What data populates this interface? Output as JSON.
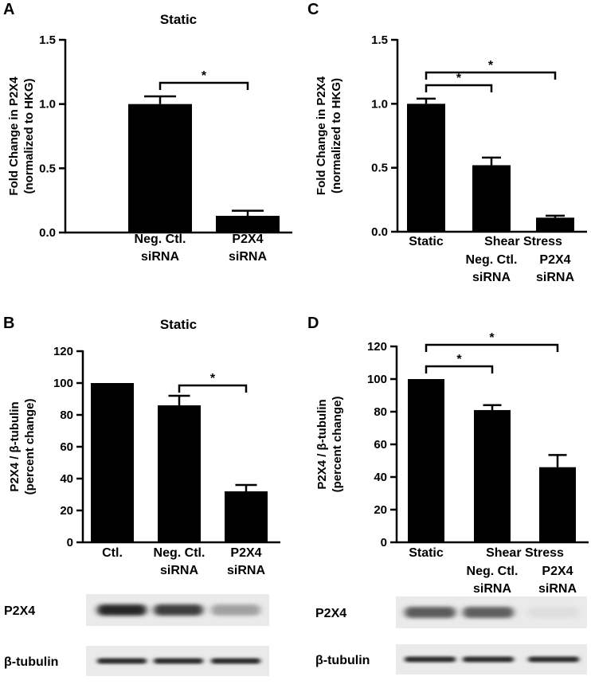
{
  "panels": [
    {
      "id": "A",
      "letter": "A"
    },
    {
      "id": "B",
      "letter": "B"
    },
    {
      "id": "C",
      "letter": "C"
    },
    {
      "id": "D",
      "letter": "D"
    }
  ],
  "chart_data": [
    {
      "panel": "A",
      "type": "bar",
      "title": "Static",
      "ylabel": [
        "Fold Change in P2X4",
        "(normalized to HKG)"
      ],
      "categories": [
        [
          "Neg. Ctl.",
          "siRNA"
        ],
        [
          "P2X4",
          "siRNA"
        ]
      ],
      "values": [
        1.0,
        0.13
      ],
      "errors": [
        0.06,
        0.04
      ],
      "ylim": [
        0,
        1.5
      ],
      "yticks": [
        0.0,
        0.5,
        1.0,
        1.5
      ],
      "ytick_labels": [
        "0.0",
        "0.5",
        "1.0",
        "1.5"
      ],
      "significance": [
        {
          "from": 0,
          "to": 1,
          "label": "*"
        }
      ],
      "bar_color": "#000000",
      "grid": false
    },
    {
      "panel": "B",
      "type": "bar",
      "title": "Static",
      "ylabel": [
        "P2X4 / β-tubulin",
        "(percent change)"
      ],
      "categories": [
        [
          "Ctl."
        ],
        [
          "Neg. Ctl.",
          "siRNA"
        ],
        [
          "P2X4",
          "siRNA"
        ]
      ],
      "values": [
        100,
        86,
        32
      ],
      "errors": [
        0,
        6,
        4
      ],
      "ylim": [
        0,
        120
      ],
      "yticks": [
        0,
        20,
        40,
        60,
        80,
        100,
        120
      ],
      "ytick_labels": [
        "0",
        "20",
        "40",
        "60",
        "80",
        "100",
        "120"
      ],
      "significance": [
        {
          "from": 1,
          "to": 2,
          "label": "*"
        }
      ],
      "bar_color": "#000000",
      "grid": false
    },
    {
      "panel": "C",
      "type": "bar",
      "title": "",
      "ylabel": [
        "Fold Change in P2X4",
        "(normalized to HKG)"
      ],
      "categories": [
        [
          "Static"
        ],
        [
          "Neg. Ctl.",
          "siRNA"
        ],
        [
          "P2X4",
          "siRNA"
        ]
      ],
      "group_label": {
        "text": "Shear Stress",
        "from": 1,
        "to": 2
      },
      "values": [
        1.0,
        0.52,
        0.11
      ],
      "errors": [
        0.04,
        0.06,
        0.015
      ],
      "ylim": [
        0,
        1.5
      ],
      "yticks": [
        0.0,
        0.5,
        1.0,
        1.5
      ],
      "ytick_labels": [
        "0.0",
        "0.5",
        "1.0",
        "1.5"
      ],
      "significance": [
        {
          "from": 0,
          "to": 1,
          "label": "*"
        },
        {
          "from": 0,
          "to": 2,
          "label": "*"
        }
      ],
      "bar_color": "#000000",
      "grid": false
    },
    {
      "panel": "D",
      "type": "bar",
      "title": "",
      "ylabel": [
        "P2X4 / β-tubulin",
        "(percent change)"
      ],
      "categories": [
        [
          "Static"
        ],
        [
          "Neg. Ctl.",
          "siRNA"
        ],
        [
          "P2X4",
          "siRNA"
        ]
      ],
      "group_label": {
        "text": "Shear Stress",
        "from": 1,
        "to": 2
      },
      "values": [
        100,
        81,
        46
      ],
      "errors": [
        0,
        3,
        7.5
      ],
      "ylim": [
        0,
        120
      ],
      "yticks": [
        0,
        20,
        40,
        60,
        80,
        100,
        120
      ],
      "ytick_labels": [
        "0",
        "20",
        "40",
        "60",
        "80",
        "100",
        "120"
      ],
      "significance": [
        {
          "from": 0,
          "to": 1,
          "label": "*"
        },
        {
          "from": 0,
          "to": 2,
          "label": "*"
        }
      ],
      "bar_color": "#000000",
      "grid": false
    }
  ],
  "blots": [
    {
      "panel": "B",
      "rows": [
        {
          "label": "P2X4",
          "band_intensity": [
            0.92,
            0.82,
            0.4
          ]
        },
        {
          "label": "β-tubulin",
          "band_intensity": [
            0.9,
            0.9,
            0.9
          ]
        }
      ]
    },
    {
      "panel": "D",
      "rows": [
        {
          "label": "P2X4",
          "band_intensity": [
            0.7,
            0.68,
            0.14
          ]
        },
        {
          "label": "β-tubulin",
          "band_intensity": [
            0.9,
            0.9,
            0.9
          ]
        }
      ]
    }
  ]
}
